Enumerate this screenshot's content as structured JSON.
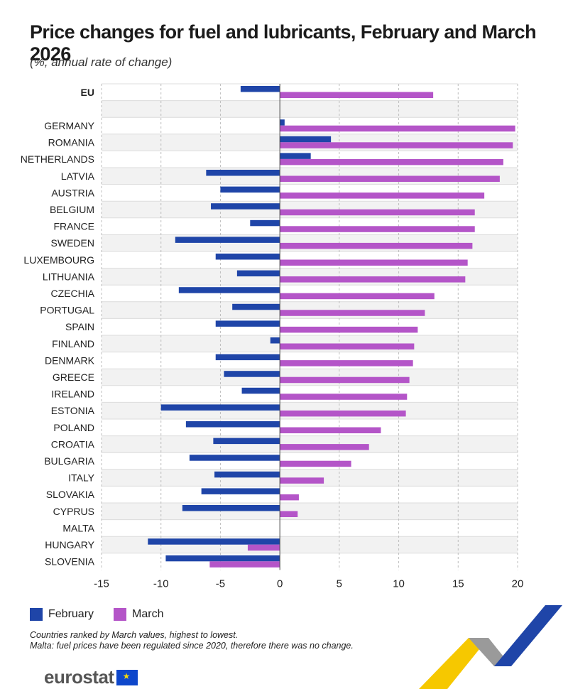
{
  "title": "Price changes for fuel and lubricants, February and March 2026",
  "subtitle": "(%, annual rate of change)",
  "chart_data": {
    "type": "bar",
    "orientation": "horizontal",
    "xlim": [
      -15,
      20
    ],
    "xticks": [
      -15,
      -10,
      -5,
      0,
      5,
      10,
      15,
      20
    ],
    "tick_labels": [
      "-15",
      "-10",
      "-5",
      "0",
      "5",
      "10",
      "15",
      "20"
    ],
    "categories": [
      "EU",
      "GERMANY",
      "ROMANIA",
      "NETHERLANDS",
      "LATVIA",
      "AUSTRIA",
      "BELGIUM",
      "FRANCE",
      "SWEDEN",
      "LUXEMBOURG",
      "LITHUANIA",
      "CZECHIA",
      "PORTUGAL",
      "SPAIN",
      "FINLAND",
      "DENMARK",
      "GREECE",
      "IRELAND",
      "ESTONIA",
      "POLAND",
      "CROATIA",
      "BULGARIA",
      "ITALY",
      "SLOVAKIA",
      "CYPRUS",
      "MALTA",
      "HUNGARY",
      "SLOVENIA"
    ],
    "series": [
      {
        "name": "February",
        "color": "#1f45a8",
        "values": [
          -3.3,
          0.4,
          4.3,
          2.6,
          -6.2,
          -5.0,
          -5.8,
          -2.5,
          -8.8,
          -5.4,
          -3.6,
          -8.5,
          -4.0,
          -5.4,
          -0.8,
          -5.4,
          -4.7,
          -3.2,
          -10.0,
          -7.9,
          -5.6,
          -7.6,
          -5.5,
          -6.6,
          -8.2,
          0.0,
          -11.1,
          -9.6
        ]
      },
      {
        "name": "March",
        "color": "#b455c8",
        "values": [
          12.9,
          19.8,
          19.6,
          18.8,
          18.5,
          17.2,
          16.4,
          16.4,
          16.2,
          15.8,
          15.6,
          13.0,
          12.2,
          11.6,
          11.3,
          11.2,
          10.9,
          10.7,
          10.6,
          8.5,
          7.5,
          6.0,
          3.7,
          1.6,
          1.5,
          0.0,
          -2.7,
          -5.9
        ]
      }
    ]
  },
  "legend": {
    "february": "February",
    "march": "March"
  },
  "notes": {
    "line1": "Countries ranked by March values, highest to lowest.",
    "line2": "Malta: fuel prices have been regulated since 2020, therefore there was no change."
  },
  "logo": {
    "text": "eurostat"
  }
}
